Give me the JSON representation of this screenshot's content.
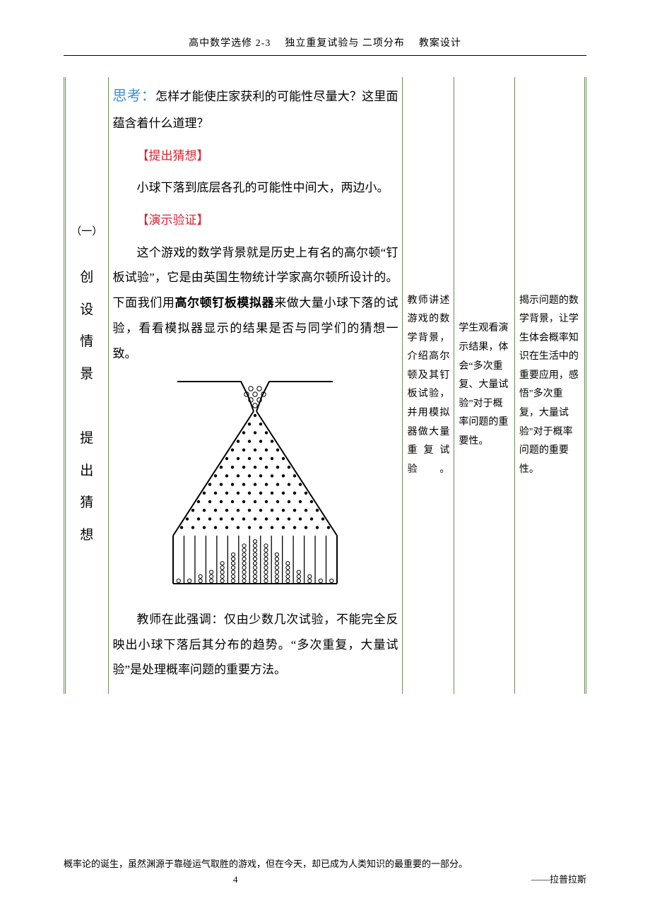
{
  "header": {
    "course": "高中数学选修 2-3",
    "topic": "独立重复试验与 二项分布",
    "doc_type": "教案设计"
  },
  "stage": {
    "number": "（一）",
    "title_chars": [
      "创",
      "设",
      "情",
      "景",
      "",
      "提",
      "出",
      "猜",
      "想"
    ]
  },
  "content": {
    "think_label": "思考：",
    "think_text": "怎样才能使庄家获利的可能性尽量大？这里面蕴含着什么道理？",
    "guess_label": "【提出猜想】",
    "guess_text": "小球下落到底层各孔的可能性中间大，两边小。",
    "demo_label": "【演示验证】",
    "demo_p1_a": "这个游戏的数学背景就是历史上有名的高尔顿“钉板试验”，它是由英国生物统计学家高尔顿所设计的。下面我们用",
    "demo_p1_bold": "高尔顿钉板模拟器",
    "demo_p1_b": "来做大量小球下落的试验，看看模拟器显示的结果是否与同学们的猜想一致。",
    "demo_p2": "教师在此强调：仅由少数几次试验，不能完全反映出小球下落后其分布的趋势。“多次重复，大量试验”是处理概率问题的重要方法。"
  },
  "teacher_activity": "教师讲述游戏的数学背景，介绍高尔顿及其钉板试验，并用模拟器做大量重复试验。",
  "student_activity": "学生观看演示结果，体会“多次重复、大量试验”对于概率问题的重要性。",
  "design_intent": "揭示问题的数学背景，让学生体会概率知识在生活中的重要应用，感悟\"多次重复，大量试验\"对于概率问题的重要性。",
  "footer": {
    "quote": "概率论的诞生，虽然渊源于靠碰运气取胜的游戏，但在今天，却已成为人类知识的最重要的一部分。",
    "page": "4",
    "author": "——拉普拉斯"
  },
  "galton": {
    "peg_rows": 14,
    "peg_color": "#000000",
    "ball_color": "#000000",
    "outline_color": "#000000",
    "bin_count": 15
  },
  "colors": {
    "table_border": "#6b8f5a",
    "think_blue": "#3b8fd4",
    "bracket_red": "#d23",
    "text": "#000000",
    "background": "#ffffff"
  },
  "typography": {
    "body_font": "SimSun",
    "content_fontsize_pt": 13,
    "narrow_col_fontsize_pt": 10,
    "header_fontsize_pt": 10,
    "line_height": 2.1
  }
}
